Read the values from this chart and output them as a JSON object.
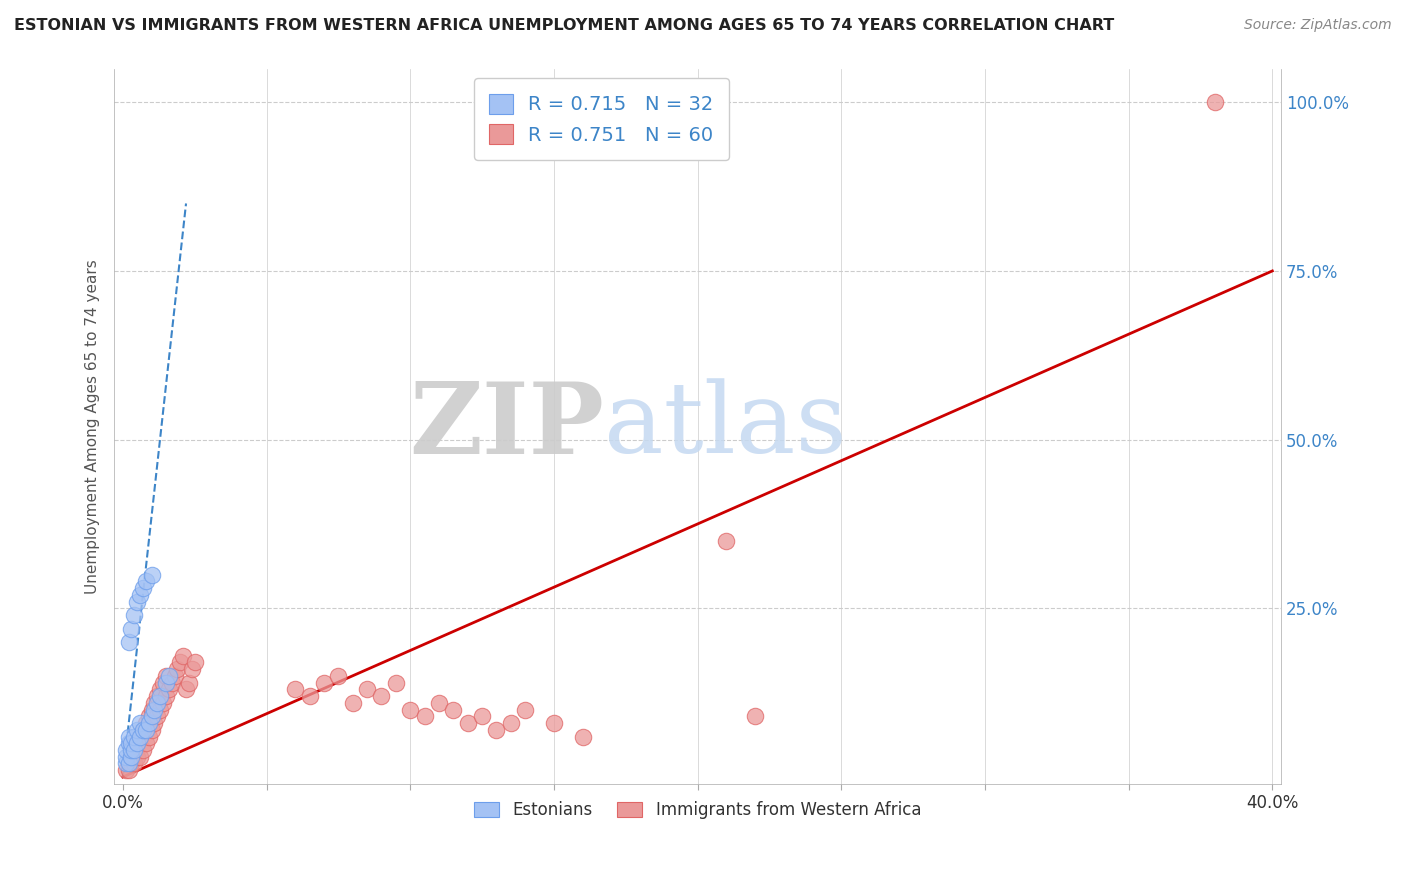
{
  "title": "ESTONIAN VS IMMIGRANTS FROM WESTERN AFRICA UNEMPLOYMENT AMONG AGES 65 TO 74 YEARS CORRELATION CHART",
  "source": "Source: ZipAtlas.com",
  "ylabel": "Unemployment Among Ages 65 to 74 years",
  "xlim": [
    -0.003,
    0.403
  ],
  "ylim": [
    -0.01,
    1.05
  ],
  "xticks": [
    0.0,
    0.05,
    0.1,
    0.15,
    0.2,
    0.25,
    0.3,
    0.35,
    0.4
  ],
  "yticks": [
    0.25,
    0.5,
    0.75,
    1.0
  ],
  "ytick_labels": [
    "25.0%",
    "50.0%",
    "75.0%",
    "100.0%"
  ],
  "xtick_labels": [
    "0.0%",
    "",
    "",
    "",
    "",
    "",
    "",
    "",
    "40.0%"
  ],
  "blue_fill": "#a4c2f4",
  "blue_edge": "#6d9eeb",
  "pink_fill": "#ea9999",
  "pink_edge": "#e06666",
  "blue_line_color": "#3d85c8",
  "pink_line_color": "#cc0000",
  "text_blue": "#3d85c8",
  "R_blue": 0.715,
  "N_blue": 32,
  "R_pink": 0.751,
  "N_pink": 60,
  "legend_label_blue": "Estonians",
  "legend_label_pink": "Immigrants from Western Africa",
  "watermark_ZIP": "ZIP",
  "watermark_atlas": "atlas",
  "background_color": "#ffffff",
  "grid_color": "#cccccc",
  "blue_x": [
    0.001,
    0.001,
    0.001,
    0.002,
    0.002,
    0.002,
    0.003,
    0.003,
    0.003,
    0.004,
    0.004,
    0.005,
    0.005,
    0.006,
    0.006,
    0.007,
    0.008,
    0.009,
    0.01,
    0.011,
    0.012,
    0.013,
    0.015,
    0.016,
    0.002,
    0.003,
    0.004,
    0.005,
    0.006,
    0.007,
    0.008,
    0.01
  ],
  "blue_y": [
    0.02,
    0.03,
    0.04,
    0.02,
    0.05,
    0.06,
    0.03,
    0.04,
    0.05,
    0.04,
    0.06,
    0.05,
    0.07,
    0.06,
    0.08,
    0.07,
    0.07,
    0.08,
    0.09,
    0.1,
    0.11,
    0.12,
    0.14,
    0.15,
    0.2,
    0.22,
    0.24,
    0.26,
    0.27,
    0.28,
    0.29,
    0.3
  ],
  "blue_trend_x": [
    0.0,
    0.022
  ],
  "blue_trend_y": [
    0.0,
    0.85
  ],
  "pink_x": [
    0.001,
    0.002,
    0.003,
    0.003,
    0.004,
    0.004,
    0.005,
    0.005,
    0.006,
    0.006,
    0.007,
    0.007,
    0.008,
    0.008,
    0.009,
    0.009,
    0.01,
    0.01,
    0.011,
    0.011,
    0.012,
    0.012,
    0.013,
    0.013,
    0.014,
    0.014,
    0.015,
    0.015,
    0.016,
    0.017,
    0.018,
    0.019,
    0.02,
    0.021,
    0.022,
    0.023,
    0.024,
    0.025,
    0.06,
    0.065,
    0.07,
    0.075,
    0.08,
    0.085,
    0.09,
    0.095,
    0.1,
    0.105,
    0.11,
    0.115,
    0.12,
    0.125,
    0.13,
    0.135,
    0.14,
    0.15,
    0.16,
    0.21,
    0.22,
    0.38
  ],
  "pink_y": [
    0.01,
    0.01,
    0.02,
    0.03,
    0.02,
    0.04,
    0.03,
    0.05,
    0.03,
    0.06,
    0.04,
    0.07,
    0.05,
    0.08,
    0.06,
    0.09,
    0.07,
    0.1,
    0.08,
    0.11,
    0.09,
    0.12,
    0.1,
    0.13,
    0.11,
    0.14,
    0.12,
    0.15,
    0.13,
    0.14,
    0.15,
    0.16,
    0.17,
    0.18,
    0.13,
    0.14,
    0.16,
    0.17,
    0.13,
    0.12,
    0.14,
    0.15,
    0.11,
    0.13,
    0.12,
    0.14,
    0.1,
    0.09,
    0.11,
    0.1,
    0.08,
    0.09,
    0.07,
    0.08,
    0.1,
    0.08,
    0.06,
    0.35,
    0.09,
    1.0
  ],
  "pink_trend_x": [
    0.0,
    0.4
  ],
  "pink_trend_y": [
    0.0,
    0.75
  ]
}
